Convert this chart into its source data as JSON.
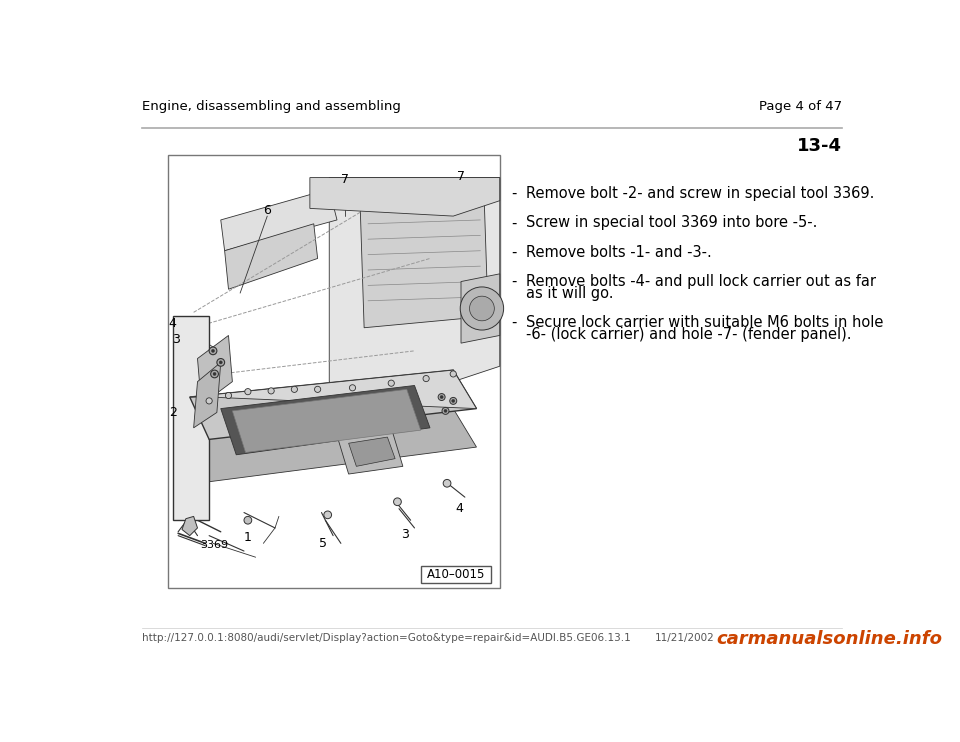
{
  "bg_color": "#ffffff",
  "header_left": "Engine, disassembling and assembling",
  "header_right": "Page 4 of 47",
  "section_number": "13-4",
  "header_line_color": "#aaaaaa",
  "bullet_items": [
    [
      "Remove bolt -2- and screw in special tool 3369."
    ],
    [
      "Screw in special tool 3369 into bore -5-."
    ],
    [
      "Remove bolts -1- and -3-."
    ],
    [
      "Remove bolts -4- and pull lock carrier out as far",
      "as it will go."
    ],
    [
      "Secure lock carrier with suitable M6 bolts in hole",
      "-6- (lock carrier) and hole -7- (fender panel)."
    ]
  ],
  "footer_url": "http://127.0.0.1:8080/audi/servlet/Display?action=Goto&type=repair&id=AUDI.B5.GE06.13.1",
  "footer_date": "11/21/2002",
  "footer_watermark": "carmanualsonline.info",
  "image_label": "A10–0015",
  "text_color": "#000000",
  "header_font_size": 9.5,
  "body_font_size": 10.5,
  "footer_font_size": 7.5,
  "watermark_font_size": 13,
  "diagram_line_color": "#333333",
  "diagram_fill_light": "#e8e8e8",
  "diagram_fill_mid": "#cccccc",
  "diagram_fill_dark": "#aaaaaa"
}
